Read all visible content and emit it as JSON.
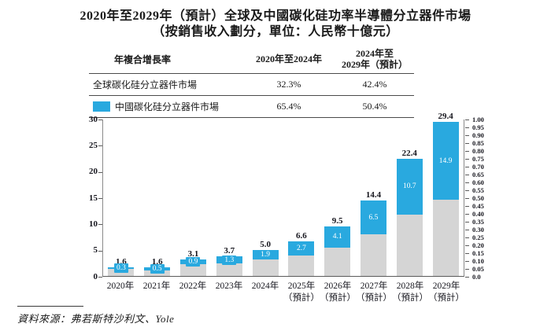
{
  "title": {
    "line1": "2020年至2029年（預計）全球及中國碳化硅功率半導體分立器件市場",
    "line2": "（按銷售收入劃分，單位：人民幣十億元）"
  },
  "table": {
    "header": {
      "col1": "年複合增長率",
      "col2": "2020年至2024年",
      "col3_line1": "2024年至",
      "col3_line2": "2029年（預計）"
    },
    "rows": [
      {
        "label": "全球碳化硅分立器件市場",
        "cagr_2020_2024": "32.3%",
        "cagr_2024_2029": "42.4%"
      },
      {
        "label": "中國碳化硅分立器件市場",
        "cagr_2020_2024": "65.4%",
        "cagr_2024_2029": "50.4%"
      }
    ]
  },
  "chart_data": {
    "type": "bar",
    "stacked": true,
    "title": "2020年至2029年（預計）全球及中國碳化硅功率半導體分立器件市場（按銷售收入劃分，單位：人民幣十億元）",
    "unit": "人民幣十億元",
    "categories": [
      "2020年",
      "2021年",
      "2022年",
      "2023年",
      "2024年",
      "2025年\n（預計）",
      "2026年\n（預計）",
      "2027年\n（預計）",
      "2028年\n（預計）",
      "2029年\n（預計）"
    ],
    "series": [
      {
        "name": "全球碳化硅分立器件市場",
        "role": "total-global-market",
        "color": "#D5D5D5",
        "values": [
          1.6,
          1.6,
          3.1,
          3.7,
          5.0,
          6.6,
          9.5,
          14.4,
          22.4,
          29.4
        ]
      },
      {
        "name": "中國碳化硅分立器件市場",
        "role": "china-segment",
        "color": "#29A9DF",
        "values": [
          0.3,
          0.5,
          0.9,
          1.3,
          1.9,
          2.7,
          4.1,
          6.5,
          10.7,
          14.9
        ]
      }
    ],
    "left_axis": {
      "min": 0,
      "max": 30,
      "ticks": [
        0,
        5,
        10,
        15,
        20,
        25,
        30
      ]
    },
    "right_axis": {
      "min": 0.0,
      "max": 1.0,
      "tick_labels": [
        "1.00",
        "0.95",
        "0.90",
        "0.85",
        "0.80",
        "0.75",
        "0.70",
        "0.65",
        "0.60",
        "0.55",
        "0.50",
        "0.45",
        "0.40",
        "0.35",
        "0.30",
        "0.25",
        "0.20",
        "0.15",
        "0.10",
        "0.05",
        "0.0"
      ]
    },
    "grid": false,
    "legend_position": "table"
  },
  "colors": {
    "china_blue": "#29A9DF",
    "global_gray": "#D5D5D5",
    "axis_line": "#8a8a8a",
    "text": "#17171f"
  },
  "source": "資料來源：弗若斯特沙利文、Yole"
}
